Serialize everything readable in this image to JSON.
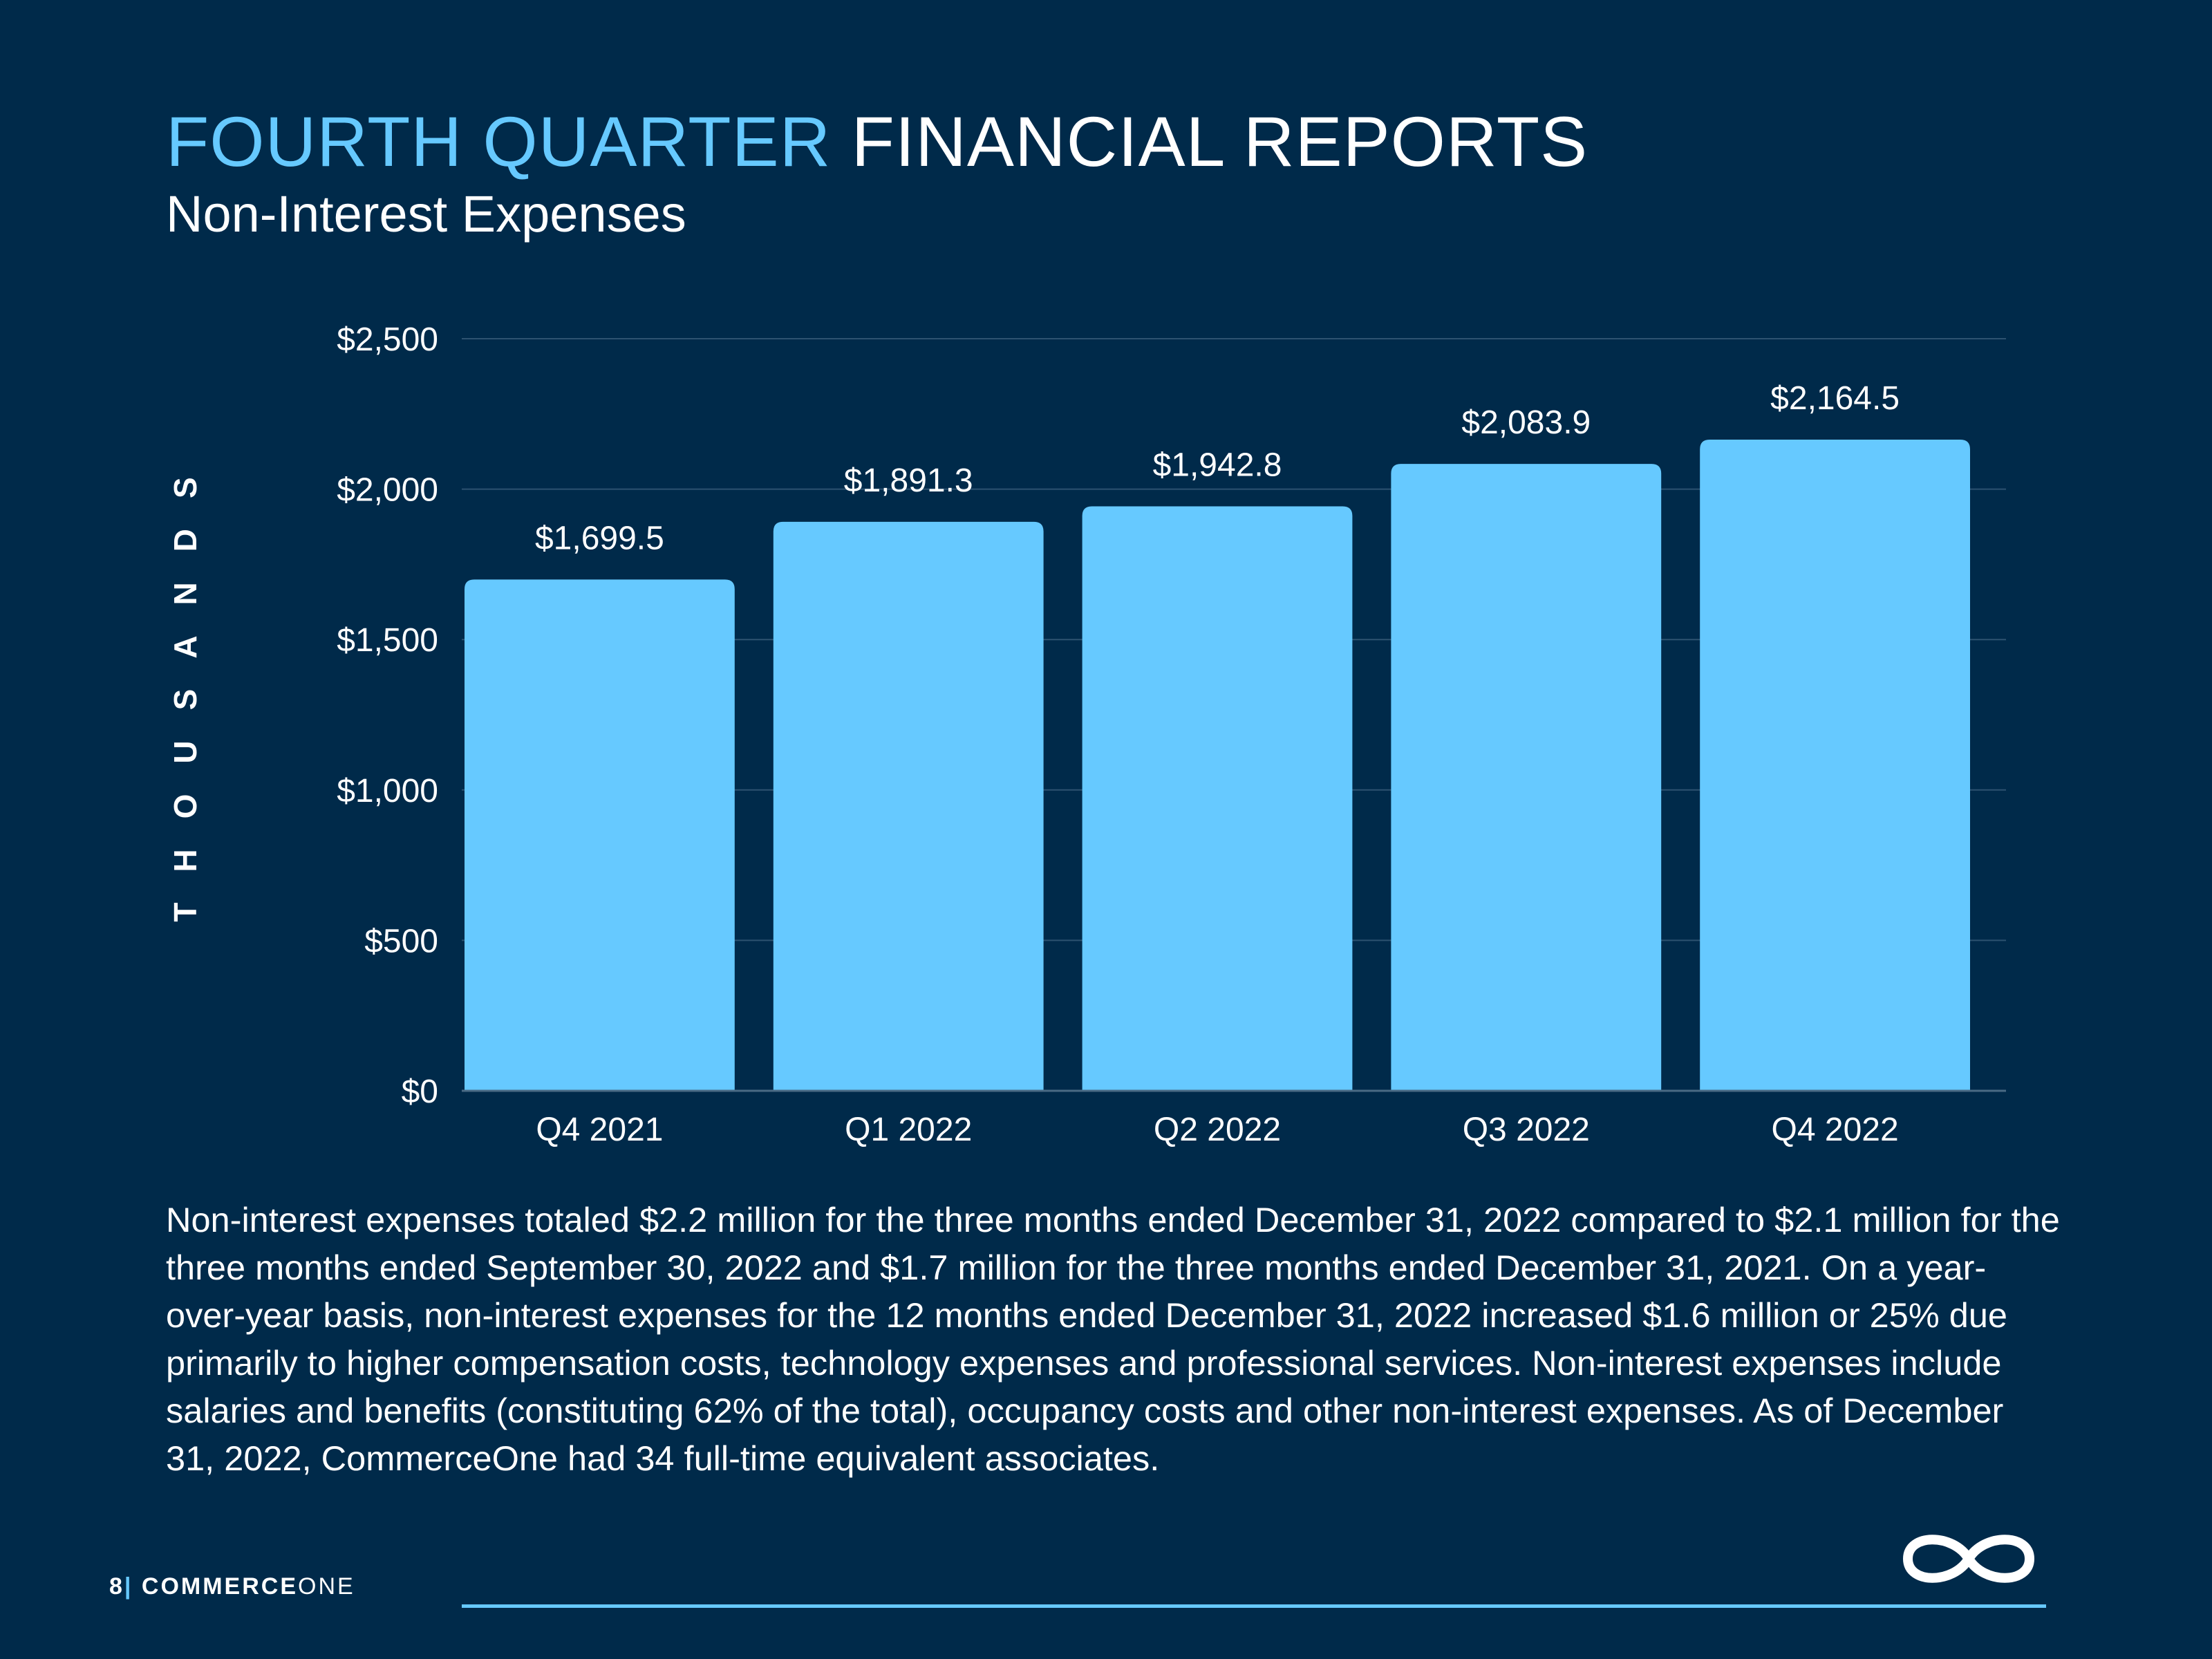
{
  "header": {
    "title_accent": "FOURTH QUARTER",
    "title_rest": " FINANCIAL REPORTS",
    "subtitle": "Non-Interest Expenses"
  },
  "chart_data": {
    "type": "bar",
    "categories": [
      "Q4 2021",
      "Q1 2022",
      "Q2 2022",
      "Q3 2022",
      "Q4 2022"
    ],
    "values": [
      1699.5,
      1891.3,
      1942.8,
      2083.9,
      2164.5
    ],
    "data_labels": [
      "$1,699.5",
      "$1,891.3",
      "$1,942.8",
      "$2,083.9",
      "$2,164.5"
    ],
    "ylabel": "THOUSANDS",
    "ylim": [
      0,
      2500
    ],
    "yticks": [
      0,
      500,
      1000,
      1500,
      2000,
      2500
    ],
    "ytick_labels": [
      "$0",
      "$500",
      "$1,000",
      "$1,500",
      "$2,000",
      "$2,500"
    ],
    "grid": true,
    "bar_color": "#66c9ff"
  },
  "description": "Non-interest expenses totaled $2.2 million for the three months ended December 31, 2022 compared to $2.1 million for the three months ended September 30, 2022 and $1.7 million for the three months ended December 31, 2021. On a year-over-year basis, non-interest expenses for the 12 months ended December 31, 2022 increased $1.6 million or 25% due primarily to higher compensation costs, technology expenses and professional services. Non-interest expenses include salaries and benefits (constituting 62% of the total), occupancy costs and other non-interest expenses. As of December 31, 2022, CommerceOne had 34 full-time equivalent associates.",
  "footer": {
    "page_number": "8",
    "separator": "|",
    "brand_bold": "COMMERCE",
    "brand_light": "ONE",
    "logo_icon": "infinity-icon"
  },
  "colors": {
    "background": "#002a4a",
    "accent": "#66c9ff",
    "text": "#ffffff"
  }
}
